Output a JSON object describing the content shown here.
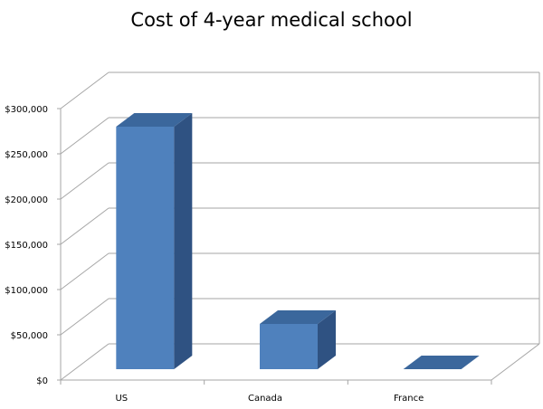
{
  "chart_data": {
    "type": "bar",
    "title": "Cost of 4-year medical school",
    "categories": [
      "US",
      "Canada",
      "France"
    ],
    "values": [
      268000,
      50000,
      0
    ],
    "ylim": [
      0,
      300000
    ],
    "yticks": [
      0,
      50000,
      100000,
      150000,
      200000,
      250000,
      300000
    ],
    "ytick_labels": [
      "$0",
      "$50,000",
      "$100,000",
      "$150,000",
      "$200,000",
      "$250,000",
      "$300,000"
    ],
    "xlabel": "",
    "ylabel": "",
    "grid": true,
    "legend": "none",
    "three_d": true,
    "colors": {
      "front": "#4f81bd",
      "side": "#2f5282",
      "top": "#3b679c",
      "grid": "#a6a6a6",
      "axis": "#a6a6a6"
    }
  }
}
